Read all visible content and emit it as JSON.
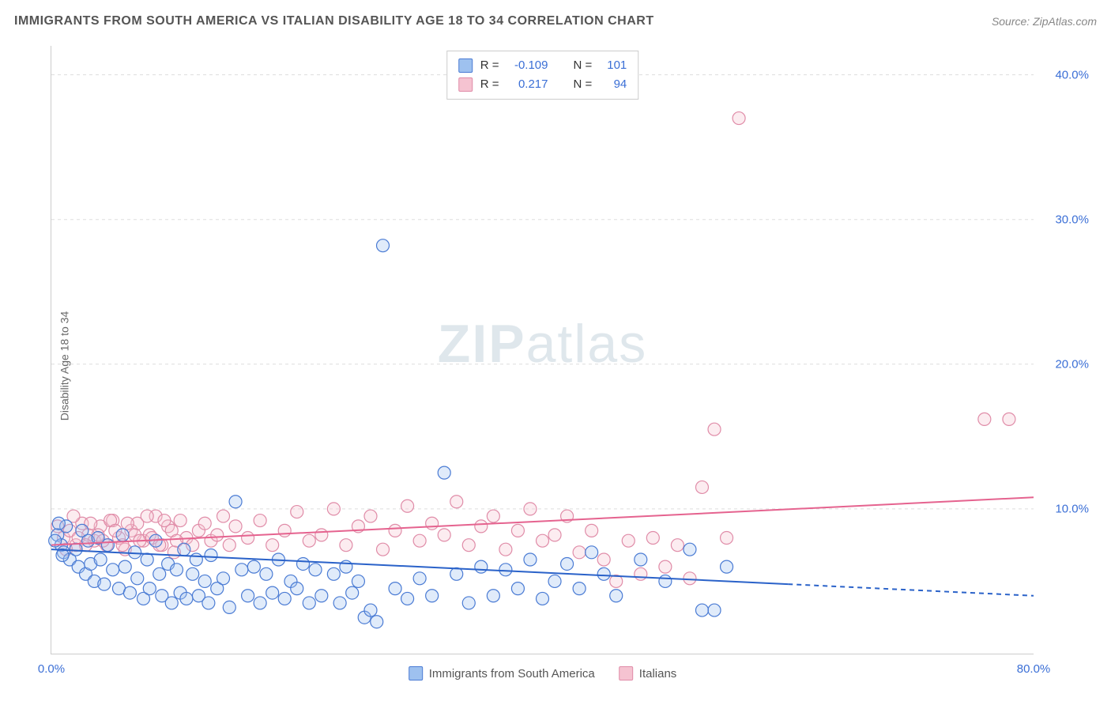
{
  "title": "IMMIGRANTS FROM SOUTH AMERICA VS ITALIAN DISABILITY AGE 18 TO 34 CORRELATION CHART",
  "source_prefix": "Source: ",
  "source": "ZipAtlas.com",
  "y_axis_label": "Disability Age 18 to 34",
  "watermark_a": "ZIP",
  "watermark_b": "atlas",
  "chart": {
    "type": "scatter",
    "xlim": [
      0,
      80
    ],
    "ylim": [
      0,
      42
    ],
    "x_ticks": [
      {
        "v": 0,
        "label": "0.0%"
      },
      {
        "v": 80,
        "label": "80.0%"
      }
    ],
    "y_ticks": [
      {
        "v": 10,
        "label": "10.0%"
      },
      {
        "v": 20,
        "label": "20.0%"
      },
      {
        "v": 30,
        "label": "30.0%"
      },
      {
        "v": 40,
        "label": "40.0%"
      }
    ],
    "grid_color": "#dddddd",
    "grid_dash": "4,4",
    "background_color": "#ffffff",
    "marker_radius": 8,
    "marker_stroke_width": 1.2,
    "marker_fill_opacity": 0.32,
    "series": [
      {
        "name": "Immigrants from South America",
        "R_label": "R =",
        "N_label": "N =",
        "R": "-0.109",
        "N": "101",
        "stroke": "#4a7bd4",
        "fill": "#9ec1ef",
        "line_color": "#2a62c9",
        "trend": {
          "x1": 0,
          "y1": 7.2,
          "x2": 60,
          "y2": 4.8
        },
        "trend_ext": {
          "x1": 60,
          "y1": 4.8,
          "x2": 80,
          "y2": 4.0
        },
        "points": [
          [
            0.5,
            8.2
          ],
          [
            0.8,
            7.5
          ],
          [
            1.0,
            7.0
          ],
          [
            1.2,
            8.8
          ],
          [
            1.5,
            6.5
          ],
          [
            0.3,
            7.8
          ],
          [
            0.6,
            9.0
          ],
          [
            0.9,
            6.8
          ],
          [
            2.0,
            7.2
          ],
          [
            2.2,
            6.0
          ],
          [
            2.5,
            8.5
          ],
          [
            2.8,
            5.5
          ],
          [
            3.0,
            7.8
          ],
          [
            3.2,
            6.2
          ],
          [
            3.5,
            5.0
          ],
          [
            3.8,
            8.0
          ],
          [
            4.0,
            6.5
          ],
          [
            4.3,
            4.8
          ],
          [
            4.6,
            7.5
          ],
          [
            5.0,
            5.8
          ],
          [
            5.5,
            4.5
          ],
          [
            5.8,
            8.2
          ],
          [
            6.0,
            6.0
          ],
          [
            6.4,
            4.2
          ],
          [
            6.8,
            7.0
          ],
          [
            7.0,
            5.2
          ],
          [
            7.5,
            3.8
          ],
          [
            7.8,
            6.5
          ],
          [
            8.0,
            4.5
          ],
          [
            8.5,
            7.8
          ],
          [
            8.8,
            5.5
          ],
          [
            9.0,
            4.0
          ],
          [
            9.5,
            6.2
          ],
          [
            9.8,
            3.5
          ],
          [
            10.2,
            5.8
          ],
          [
            10.5,
            4.2
          ],
          [
            10.8,
            7.2
          ],
          [
            11.0,
            3.8
          ],
          [
            11.5,
            5.5
          ],
          [
            11.8,
            6.5
          ],
          [
            12.0,
            4.0
          ],
          [
            12.5,
            5.0
          ],
          [
            12.8,
            3.5
          ],
          [
            13.0,
            6.8
          ],
          [
            13.5,
            4.5
          ],
          [
            14.0,
            5.2
          ],
          [
            14.5,
            3.2
          ],
          [
            15.0,
            10.5
          ],
          [
            15.5,
            5.8
          ],
          [
            16.0,
            4.0
          ],
          [
            16.5,
            6.0
          ],
          [
            17.0,
            3.5
          ],
          [
            17.5,
            5.5
          ],
          [
            18.0,
            4.2
          ],
          [
            18.5,
            6.5
          ],
          [
            19.0,
            3.8
          ],
          [
            19.5,
            5.0
          ],
          [
            20.0,
            4.5
          ],
          [
            20.5,
            6.2
          ],
          [
            21.0,
            3.5
          ],
          [
            21.5,
            5.8
          ],
          [
            22.0,
            4.0
          ],
          [
            23.0,
            5.5
          ],
          [
            23.5,
            3.5
          ],
          [
            24.0,
            6.0
          ],
          [
            24.5,
            4.2
          ],
          [
            25.0,
            5.0
          ],
          [
            25.5,
            2.5
          ],
          [
            26.0,
            3.0
          ],
          [
            26.5,
            2.2
          ],
          [
            27.0,
            28.2
          ],
          [
            28.0,
            4.5
          ],
          [
            29.0,
            3.8
          ],
          [
            30.0,
            5.2
          ],
          [
            31.0,
            4.0
          ],
          [
            32.0,
            12.5
          ],
          [
            33.0,
            5.5
          ],
          [
            34.0,
            3.5
          ],
          [
            35.0,
            6.0
          ],
          [
            36.0,
            4.0
          ],
          [
            37.0,
            5.8
          ],
          [
            38.0,
            4.5
          ],
          [
            39.0,
            6.5
          ],
          [
            40.0,
            3.8
          ],
          [
            41.0,
            5.0
          ],
          [
            42.0,
            6.2
          ],
          [
            43.0,
            4.5
          ],
          [
            44.0,
            7.0
          ],
          [
            45.0,
            5.5
          ],
          [
            46.0,
            4.0
          ],
          [
            48.0,
            6.5
          ],
          [
            50.0,
            5.0
          ],
          [
            52.0,
            7.2
          ],
          [
            53.0,
            3.0
          ],
          [
            54.0,
            3.0
          ],
          [
            55.0,
            6.0
          ]
        ]
      },
      {
        "name": "Italians",
        "R_label": "R =",
        "N_label": "N =",
        "R": "0.217",
        "N": "94",
        "stroke": "#e08ca8",
        "fill": "#f5c3d1",
        "line_color": "#e5638f",
        "trend": {
          "x1": 0,
          "y1": 7.5,
          "x2": 80,
          "y2": 10.8
        },
        "points": [
          [
            1.0,
            8.0
          ],
          [
            1.5,
            8.5
          ],
          [
            2.0,
            7.5
          ],
          [
            2.5,
            9.0
          ],
          [
            3.0,
            8.2
          ],
          [
            3.5,
            7.8
          ],
          [
            4.0,
            8.8
          ],
          [
            4.5,
            7.5
          ],
          [
            5.0,
            9.2
          ],
          [
            5.5,
            8.0
          ],
          [
            6.0,
            7.2
          ],
          [
            6.5,
            8.5
          ],
          [
            7.0,
            9.0
          ],
          [
            7.5,
            7.8
          ],
          [
            8.0,
            8.2
          ],
          [
            8.5,
            9.5
          ],
          [
            9.0,
            7.5
          ],
          [
            9.5,
            8.8
          ],
          [
            10.0,
            7.0
          ],
          [
            10.5,
            9.2
          ],
          [
            11.0,
            8.0
          ],
          [
            11.5,
            7.5
          ],
          [
            12.0,
            8.5
          ],
          [
            12.5,
            9.0
          ],
          [
            13.0,
            7.8
          ],
          [
            13.5,
            8.2
          ],
          [
            14.0,
            9.5
          ],
          [
            14.5,
            7.5
          ],
          [
            15.0,
            8.8
          ],
          [
            16.0,
            8.0
          ],
          [
            17.0,
            9.2
          ],
          [
            18.0,
            7.5
          ],
          [
            19.0,
            8.5
          ],
          [
            20.0,
            9.8
          ],
          [
            21.0,
            7.8
          ],
          [
            22.0,
            8.2
          ],
          [
            23.0,
            10.0
          ],
          [
            24.0,
            7.5
          ],
          [
            25.0,
            8.8
          ],
          [
            26.0,
            9.5
          ],
          [
            27.0,
            7.2
          ],
          [
            28.0,
            8.5
          ],
          [
            29.0,
            10.2
          ],
          [
            30.0,
            7.8
          ],
          [
            31.0,
            9.0
          ],
          [
            32.0,
            8.2
          ],
          [
            33.0,
            10.5
          ],
          [
            34.0,
            7.5
          ],
          [
            35.0,
            8.8
          ],
          [
            36.0,
            9.5
          ],
          [
            37.0,
            7.2
          ],
          [
            38.0,
            8.5
          ],
          [
            39.0,
            10.0
          ],
          [
            40.0,
            7.8
          ],
          [
            41.0,
            8.2
          ],
          [
            42.0,
            9.5
          ],
          [
            43.0,
            7.0
          ],
          [
            44.0,
            8.5
          ],
          [
            45.0,
            6.5
          ],
          [
            46.0,
            5.0
          ],
          [
            47.0,
            7.8
          ],
          [
            48.0,
            5.5
          ],
          [
            49.0,
            8.0
          ],
          [
            50.0,
            6.0
          ],
          [
            51.0,
            7.5
          ],
          [
            52.0,
            5.2
          ],
          [
            53.0,
            11.5
          ],
          [
            54.0,
            15.5
          ],
          [
            55.0,
            8.0
          ],
          [
            56.0,
            37.0
          ],
          [
            76.0,
            16.2
          ],
          [
            78.0,
            16.2
          ],
          [
            0.5,
            8.8
          ],
          [
            1.2,
            7.2
          ],
          [
            1.8,
            9.5
          ],
          [
            2.2,
            8.0
          ],
          [
            2.8,
            7.5
          ],
          [
            3.2,
            9.0
          ],
          [
            3.8,
            8.2
          ],
          [
            4.2,
            7.8
          ],
          [
            4.8,
            9.2
          ],
          [
            5.2,
            8.5
          ],
          [
            5.8,
            7.5
          ],
          [
            6.2,
            9.0
          ],
          [
            6.8,
            8.2
          ],
          [
            7.2,
            7.8
          ],
          [
            7.8,
            9.5
          ],
          [
            8.2,
            8.0
          ],
          [
            8.8,
            7.5
          ],
          [
            9.2,
            9.2
          ],
          [
            9.8,
            8.5
          ],
          [
            10.2,
            7.8
          ]
        ]
      }
    ]
  }
}
